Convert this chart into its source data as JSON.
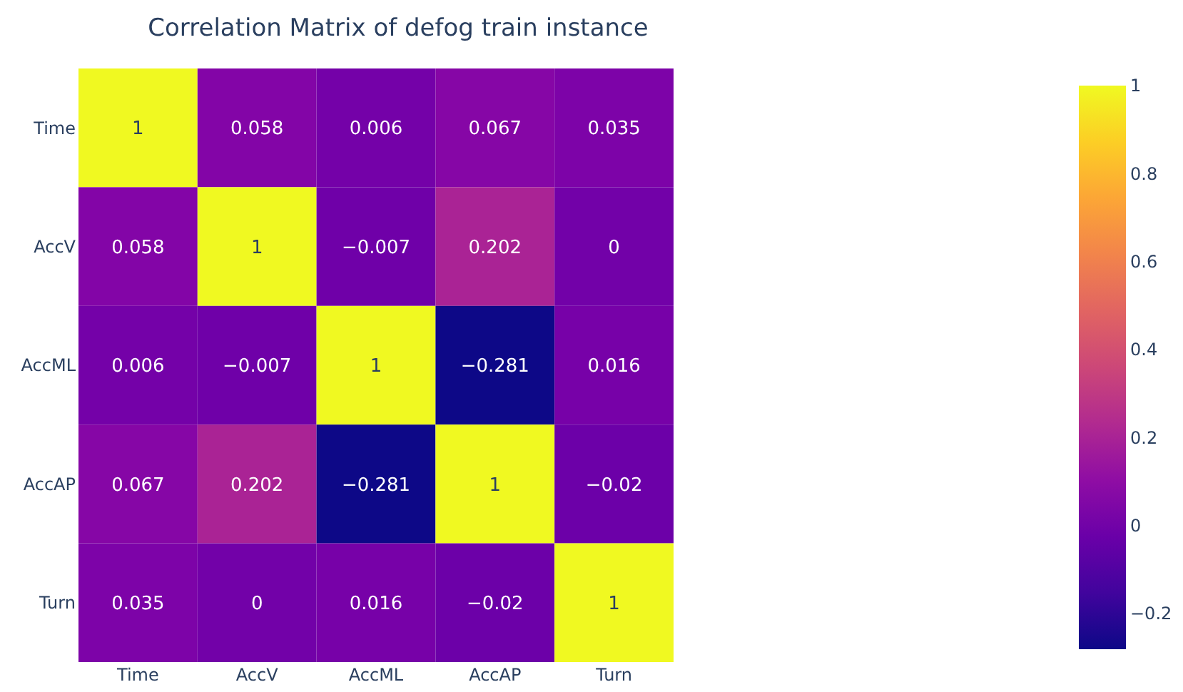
{
  "chart_data": {
    "type": "heatmap",
    "title": "Correlation Matrix of defog train instance",
    "categories": [
      "Time",
      "AccV",
      "AccML",
      "AccAP",
      "Turn"
    ],
    "y_categories": [
      "Time",
      "AccV",
      "AccML",
      "AccAP",
      "Turn"
    ],
    "cells": [
      [
        1,
        0.058,
        0.006,
        0.067,
        0.035
      ],
      [
        0.058,
        1,
        -0.007,
        0.202,
        0
      ],
      [
        0.006,
        -0.007,
        1,
        -0.281,
        0.016
      ],
      [
        0.067,
        0.202,
        -0.281,
        1,
        -0.02
      ],
      [
        0.035,
        0,
        0.016,
        -0.02,
        1
      ]
    ],
    "clim": [
      -0.281,
      1
    ],
    "cticks": [
      -0.2,
      0,
      0.2,
      0.4,
      0.6,
      0.8,
      1
    ],
    "data_labels": true
  }
}
